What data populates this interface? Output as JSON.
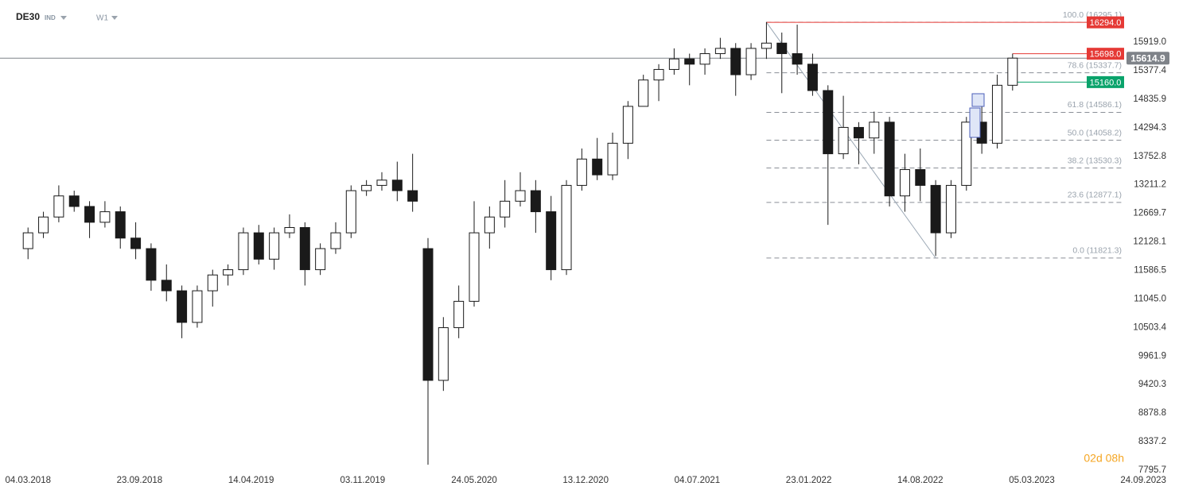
{
  "chart_data": {
    "type": "candlestick",
    "title": "DE30",
    "market": "IND",
    "interval": "W1",
    "timer": "02d 08h",
    "x": [
      "04.03.2018",
      "01.04.2018",
      "29.04.2018",
      "27.05.2018",
      "24.06.2018",
      "22.07.2018",
      "19.08.2018",
      "16.09.2018",
      "14.10.2018",
      "11.11.2018",
      "09.12.2018",
      "06.01.2019",
      "03.02.2019",
      "03.03.2019",
      "31.03.2019",
      "28.04.2019",
      "26.05.2019",
      "23.06.2019",
      "21.07.2019",
      "18.08.2019",
      "15.09.2019",
      "13.10.2019",
      "10.11.2019",
      "08.12.2019",
      "05.01.2020",
      "02.02.2020",
      "01.03.2020",
      "29.03.2020",
      "26.04.2020",
      "24.05.2020",
      "21.06.2020",
      "19.07.2020",
      "16.08.2020",
      "13.09.2020",
      "11.10.2020",
      "08.11.2020",
      "06.12.2020",
      "03.01.2021",
      "31.01.2021",
      "28.02.2021",
      "28.03.2021",
      "25.04.2021",
      "23.05.2021",
      "20.06.2021",
      "18.07.2021",
      "15.08.2021",
      "12.09.2021",
      "10.10.2021",
      "07.11.2021",
      "05.12.2021",
      "02.01.2022",
      "30.01.2022",
      "27.02.2022",
      "27.03.2022",
      "24.04.2022",
      "22.05.2022",
      "19.06.2022",
      "17.07.2022",
      "14.08.2022",
      "11.09.2022",
      "09.10.2022",
      "06.11.2022",
      "04.12.2022",
      "01.01.2023",
      "29.01.2023"
    ],
    "open": [
      12000,
      12300,
      12600,
      13000,
      12800,
      12500,
      12700,
      12200,
      12000,
      11400,
      11200,
      10600,
      11200,
      11500,
      11600,
      12300,
      11800,
      12300,
      12400,
      11600,
      12000,
      12300,
      13100,
      13200,
      13300,
      13100,
      12000,
      9500,
      10500,
      11000,
      12300,
      12600,
      12900,
      13100,
      12700,
      11600,
      13200,
      13700,
      13400,
      14000,
      14700,
      15200,
      15400,
      15600,
      15500,
      15700,
      15800,
      15300,
      15800,
      15900,
      15700,
      15500,
      15000,
      13800,
      14300,
      14100,
      14400,
      13000,
      13500,
      13200,
      12300,
      13200,
      14400,
      14000,
      15100
    ],
    "high": [
      12400,
      12700,
      13200,
      13100,
      12900,
      12900,
      12800,
      12500,
      12100,
      11700,
      11300,
      11300,
      11600,
      11700,
      12400,
      12450,
      12400,
      12650,
      12500,
      12100,
      12500,
      13200,
      13300,
      13450,
      13650,
      13800,
      12200,
      10700,
      11300,
      12900,
      12800,
      13300,
      13450,
      13300,
      13000,
      13300,
      13900,
      14100,
      14200,
      14800,
      15300,
      15500,
      15800,
      15700,
      15800,
      16000,
      15900,
      15900,
      16300,
      16100,
      16250,
      15700,
      15100,
      14900,
      14400,
      14600,
      14500,
      13800,
      13900,
      13300,
      13300,
      14500,
      14700,
      15300,
      15700
    ],
    "low": [
      11800,
      12200,
      12500,
      12700,
      12200,
      12400,
      12000,
      11800,
      11200,
      11000,
      10300,
      10500,
      10900,
      11300,
      11500,
      11700,
      11600,
      12200,
      11300,
      11500,
      11900,
      12200,
      13000,
      13100,
      12900,
      12700,
      7900,
      9300,
      10300,
      10900,
      12000,
      12400,
      12800,
      12300,
      11400,
      11500,
      13100,
      13300,
      13300,
      13700,
      14700,
      14800,
      15300,
      15100,
      15300,
      15600,
      14900,
      15200,
      15600,
      14950,
      15300,
      14900,
      12450,
      13700,
      13600,
      13800,
      12800,
      12700,
      12900,
      11860,
      12200,
      13100,
      13800,
      13900,
      15000
    ],
    "close": [
      12300,
      12600,
      13000,
      12800,
      12500,
      12700,
      12200,
      12000,
      11400,
      11200,
      10600,
      11200,
      11500,
      11600,
      12300,
      11800,
      12300,
      12400,
      11600,
      12000,
      12300,
      13100,
      13200,
      13300,
      13100,
      12900,
      9500,
      10500,
      11000,
      12300,
      12600,
      12900,
      13100,
      12700,
      11600,
      13200,
      13700,
      13400,
      14000,
      14700,
      15200,
      15400,
      15600,
      15500,
      15700,
      15800,
      15300,
      15800,
      15900,
      15700,
      15500,
      15000,
      13800,
      14300,
      14100,
      14400,
      13000,
      13500,
      13200,
      12300,
      13200,
      14400,
      14000,
      15100,
      15614.9
    ],
    "up_color": "#ffffff",
    "down_color": "#1a1a1a",
    "xlim": [
      "12.01.2018",
      "20.08.2023"
    ],
    "xticks": [
      "04.03.2018",
      "23.09.2018",
      "14.04.2019",
      "03.11.2019",
      "24.05.2020",
      "13.12.2020",
      "04.07.2021",
      "23.01.2022",
      "14.08.2022",
      "05.03.2023",
      "24.09.2023"
    ],
    "ylim": [
      7675,
      16718
    ],
    "yticks": [
      {
        "value": 15919.0,
        "label": "15919.0"
      },
      15377.4,
      14835.9,
      14294.3,
      13752.8,
      13211.2,
      12669.7,
      12128.1,
      11586.5,
      {
        "value": 11045.0,
        "label": "11045.0"
      },
      10503.4,
      9961.9,
      9420.3,
      8878.8,
      8337.2,
      7795.7
    ],
    "current_price": {
      "value": 15614.9,
      "color": "#7f8389"
    },
    "price_levels": [
      {
        "value": 16294.0,
        "label": "16294.0",
        "color": "#e53935",
        "from": "07.11.2021"
      },
      {
        "value": 15698.0,
        "label": "15698.0",
        "color": "#e53935",
        "from": "29.01.2023"
      },
      {
        "value": 15160.0,
        "label": "15160.0",
        "color": "#0aa36b",
        "from": "29.01.2023"
      }
    ],
    "fib_levels": [
      {
        "value": 16295.1,
        "label": "100.0 (16295.1)"
      },
      {
        "value": 15337.7,
        "label": "78.6 (15337.7)"
      },
      {
        "value": 14586.1,
        "label": "61.8 (14586.1)"
      },
      {
        "value": 14058.2,
        "label": "50.0 (14058.2)"
      },
      {
        "value": 13530.3,
        "label": "38.2 (13530.3)"
      },
      {
        "value": 12877.1,
        "label": "23.6 (12877.1)"
      },
      {
        "value": 11821.3,
        "label": "0.0 (11821.3)"
      }
    ],
    "fib_from": "07.11.2021"
  }
}
